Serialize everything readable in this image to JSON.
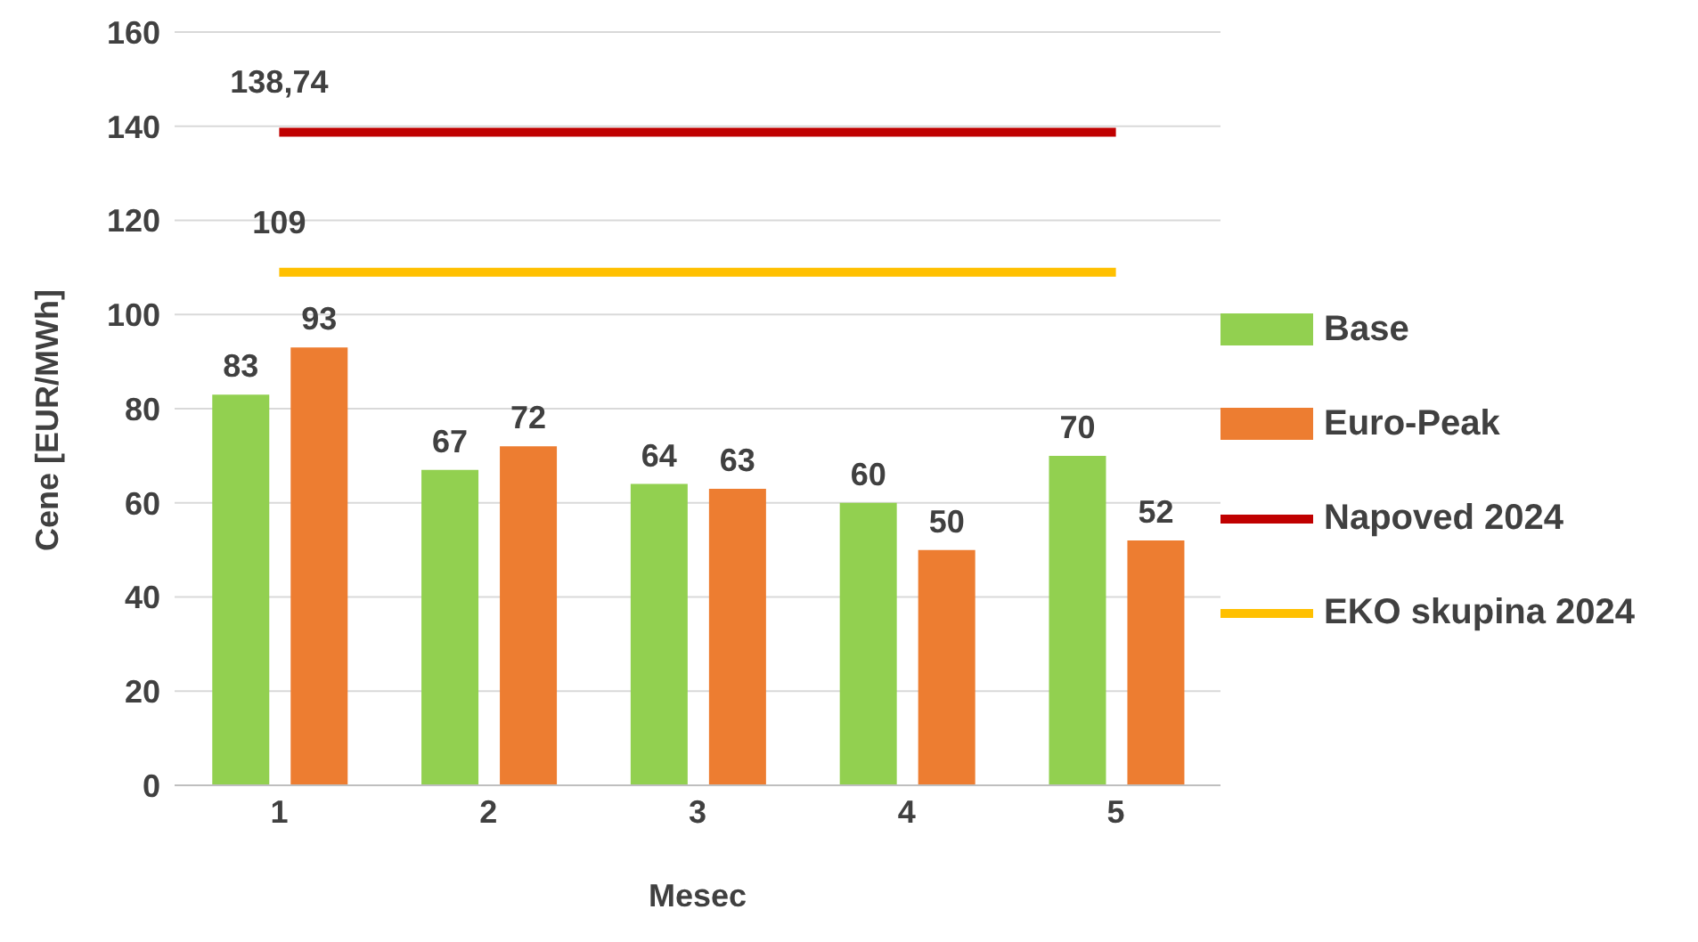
{
  "chart_data": {
    "type": "bar",
    "xlabel": "Mesec",
    "ylabel": "Cene [EUR/MWh]",
    "categories": [
      "1",
      "2",
      "3",
      "4",
      "5"
    ],
    "series": [
      {
        "name": "Base",
        "color": "#92d050",
        "values": [
          83,
          67,
          64,
          60,
          70
        ]
      },
      {
        "name": "Euro-Peak",
        "color": "#ed7d31",
        "values": [
          93,
          72,
          63,
          50,
          52
        ]
      },
      {
        "name": "Napoved 2024",
        "type": "line",
        "color": "#c00000",
        "values": [
          138.74,
          138.74,
          138.74,
          138.74,
          138.74
        ],
        "value_labels": [
          "138,74",
          null,
          null,
          null,
          null
        ]
      },
      {
        "name": "EKO skupina 2024",
        "type": "line",
        "color": "#ffc000",
        "values": [
          109,
          109,
          109,
          109,
          109
        ],
        "value_labels": [
          "109",
          null,
          null,
          null,
          null
        ]
      }
    ],
    "data_labels": true,
    "ylim": [
      0,
      160
    ],
    "yticks": [
      0,
      20,
      40,
      60,
      80,
      100,
      120,
      140,
      160
    ],
    "grid": "y",
    "legend": "right",
    "marker": "none"
  }
}
